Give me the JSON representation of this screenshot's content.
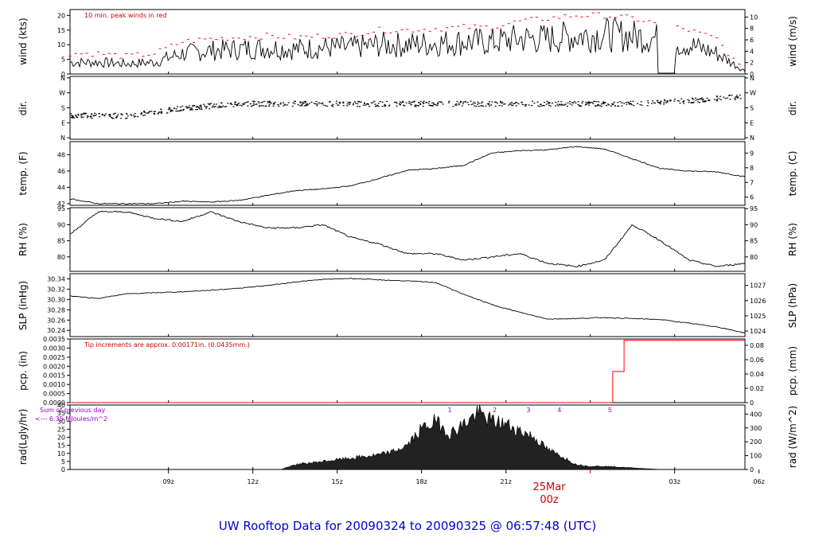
{
  "title": "UW Rooftop Data for 20090324  to  20090325 @ 06:57:48  (UTC)",
  "colors": {
    "data": "#000000",
    "peak": "#ff0000",
    "precip": "#ff0000",
    "title": "#0000cc",
    "note": "#cc0000",
    "rad_note": "#9900cc"
  },
  "chart_data": [
    {
      "type": "line",
      "panel": "wind",
      "ylabel_left": "wind (kts)",
      "ylabel_right": "wind (m/s)",
      "ylim": [
        0,
        22
      ],
      "yticks_left": [
        "0",
        "5",
        "10",
        "15",
        "20"
      ],
      "yticks_right": [
        "0",
        "2",
        "4",
        "6",
        "8",
        "10"
      ],
      "annotation": "10 min. peak winds in red",
      "x_hours": [
        0,
        1,
        2,
        3,
        4,
        5,
        6,
        7,
        8,
        9,
        10,
        11,
        12,
        13,
        14,
        15,
        16,
        17,
        18,
        19,
        20,
        21,
        22,
        23,
        24
      ],
      "series": [
        {
          "values": [
            4,
            4,
            3.5,
            4,
            7,
            8,
            8.5,
            9,
            8.5,
            9,
            9,
            10,
            10,
            10.5,
            11,
            11,
            12,
            12,
            13,
            13.5,
            13,
            12,
            10,
            7,
            1
          ]
        },
        {
          "values": [
            7,
            7,
            6,
            7,
            11,
            12,
            12.5,
            13,
            12.5,
            13,
            13.5,
            15,
            15,
            15.5,
            16,
            16,
            18,
            19,
            20,
            20,
            19,
            17,
            15,
            12,
            0
          ]
        }
      ]
    },
    {
      "type": "scatter",
      "panel": "dir",
      "ylabel_left": "dir.",
      "ylabel_right": "dir.",
      "yticks_left": [
        "N",
        "E",
        "S",
        "W",
        "N"
      ],
      "yticks_right": [
        "N",
        "E",
        "S",
        "W",
        "N"
      ],
      "x_hours": [
        0,
        2,
        4,
        6,
        8,
        10,
        12,
        14,
        16,
        18,
        20,
        22,
        24,
        26
      ],
      "values": [
        "ESE",
        "SE",
        "S",
        "SSW",
        "SSW",
        "SSW",
        "SSW",
        "SSW",
        "SSW",
        "SSW",
        "SSW",
        "SW",
        "WSW",
        "SSW"
      ]
    },
    {
      "type": "line",
      "panel": "temp",
      "ylabel_left": "temp. (F)",
      "ylabel_right": "temp. (C)",
      "ylim": [
        42,
        50
      ],
      "yticks_left": [
        "42",
        "44",
        "46",
        "48"
      ],
      "yticks_right": [
        "6",
        "7",
        "8",
        "9"
      ],
      "x_hours": [
        0,
        1,
        2,
        3,
        4,
        5,
        6,
        7,
        8,
        9,
        10,
        11,
        12,
        13,
        14,
        15,
        16,
        17,
        18,
        19,
        20,
        21,
        22,
        23,
        24,
        25,
        26
      ],
      "values": [
        42.6,
        42.0,
        42.0,
        42.0,
        42.3,
        42.2,
        42.4,
        43.0,
        43.6,
        43.8,
        44.2,
        45.1,
        46.1,
        46.3,
        46.7,
        48.2,
        48.5,
        48.6,
        49.0,
        48.7,
        47.5,
        46.3,
        46.0,
        45.9,
        45.3,
        44.6,
        44.3
      ]
    },
    {
      "type": "line",
      "panel": "rh",
      "ylabel_left": "RH (%)",
      "ylabel_right": "RH (%)",
      "ylim": [
        75,
        95
      ],
      "yticks_left": [
        "80",
        "85",
        "90",
        "95"
      ],
      "yticks_right": [
        "80",
        "85",
        "90",
        "95"
      ],
      "x_hours": [
        0,
        1,
        2,
        3,
        4,
        5,
        6,
        7,
        8,
        9,
        10,
        11,
        12,
        13,
        14,
        15,
        16,
        17,
        18,
        19,
        20,
        21,
        22,
        23,
        24,
        25,
        26
      ],
      "values": [
        87,
        94,
        94,
        92,
        91,
        94,
        91,
        89,
        89,
        90,
        86,
        84,
        81,
        81,
        79,
        80,
        81,
        78,
        77,
        79,
        90,
        85,
        79,
        77,
        78,
        79,
        80
      ]
    },
    {
      "type": "line",
      "panel": "slp",
      "ylabel_left": "SLP (inHg)",
      "ylabel_right": "SLP (hPa)",
      "ylim": [
        30.23,
        30.35
      ],
      "yticks_left": [
        "30.24",
        "30.26",
        "30.28",
        "30.30",
        "30.32",
        "30.34"
      ],
      "yticks_right": [
        "1024",
        "1025",
        "1026",
        "1027"
      ],
      "x_hours": [
        0,
        1,
        2,
        3,
        4,
        5,
        6,
        7,
        8,
        9,
        10,
        11,
        12,
        13,
        14,
        15,
        16,
        17,
        18,
        19,
        20,
        21,
        22,
        23,
        24,
        25,
        26
      ],
      "values": [
        30.307,
        30.302,
        30.311,
        30.313,
        30.315,
        30.318,
        30.322,
        30.327,
        30.334,
        30.339,
        30.341,
        30.338,
        30.336,
        30.333,
        30.31,
        30.29,
        30.275,
        30.262,
        30.263,
        30.265,
        30.263,
        30.261,
        30.254,
        30.247,
        30.235,
        30.232,
        30.23
      ]
    },
    {
      "type": "line",
      "panel": "pcp",
      "ylabel_left": "pcp. (in)",
      "ylabel_right": "pcp. (mm)",
      "ylim": [
        0,
        0.0035
      ],
      "yticks_left": [
        "0.0000",
        "0.0005",
        "0.0010",
        "0.0015",
        "0.0020",
        "0.0025",
        "0.0030",
        "0.0035"
      ],
      "yticks_right": [
        "0",
        "0.02",
        "0.04",
        "0.06",
        "0.08"
      ],
      "annotation": "Tip increments are approx. 0.00171in. (0.0435mm.)",
      "x_hours": [
        0,
        19.3,
        19.3,
        19.7,
        19.7,
        26
      ],
      "values": [
        0,
        0,
        0.00171,
        0.00171,
        0.00342,
        0.00342
      ]
    },
    {
      "type": "area",
      "panel": "rad",
      "ylabel_left": "rad(Lgly/hr)",
      "ylabel_right": "rad (W/m^2)",
      "ylim": [
        0,
        40
      ],
      "yticks_left": [
        "0",
        "5",
        "10",
        "15",
        "20",
        "25",
        "30",
        "35",
        "40"
      ],
      "yticks_right": [
        "0",
        "100",
        "200",
        "300",
        "400"
      ],
      "annotation_1": "Sum of previous day",
      "annotation_2": "<--- 6.35 MJoules/m^2",
      "hour_markers": [
        "1",
        "2",
        "3",
        "4",
        "5"
      ],
      "x_hours": [
        7.5,
        8,
        9,
        10,
        11,
        11.5,
        12,
        12.5,
        13,
        13.5,
        14,
        14.5,
        15,
        15.5,
        16,
        16.5,
        17,
        17.5,
        18,
        18.5,
        19,
        20,
        21
      ],
      "values": [
        0,
        3,
        5,
        7,
        9,
        11,
        15,
        25,
        30,
        22,
        28,
        35,
        30,
        28,
        24,
        20,
        12,
        8,
        3,
        2,
        2,
        1,
        0
      ]
    }
  ],
  "x_axis": {
    "ticks": [
      "09z",
      "12z",
      "15z",
      "18z",
      "21z",
      "03z",
      "06z"
    ],
    "day_label": "25Mar",
    "day_sub": "00z"
  }
}
